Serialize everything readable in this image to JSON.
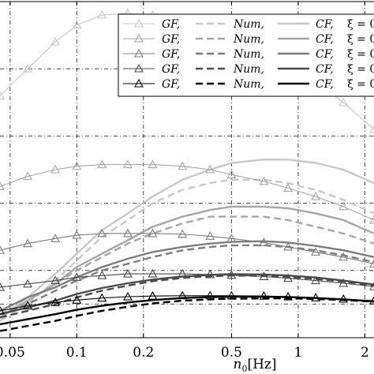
{
  "chart_data": {
    "type": "line",
    "title": "",
    "xlabel": "n_0[Hz]",
    "xlabel_parts": {
      "var": "n",
      "sub": "0",
      "unit": "[Hz]"
    },
    "ylabel": "",
    "xscale": "log",
    "xlim": [
      0.045,
      2.2
    ],
    "ylim": [
      0.0,
      1.0
    ],
    "xticks": [
      0.05,
      0.1,
      0.2,
      0.5,
      1,
      2
    ],
    "xtick_labels": [
      "0.05",
      "0.1",
      "0.2",
      "0.5",
      "1",
      "2"
    ],
    "grid": "dash-dot",
    "legend_position": "top-right",
    "legend_rows": [
      {
        "gf": "GF,",
        "num": "Num,",
        "cf": "CF,",
        "xi": "ξ = 0",
        "color": "#c8c8c8"
      },
      {
        "gf": "GF,",
        "num": "Num,",
        "cf": "CF,",
        "xi": "ξ = 0",
        "color": "#a6a6a6"
      },
      {
        "gf": "GF,",
        "num": "Num,",
        "cf": "CF,",
        "xi": "ξ = 0",
        "color": "#7d7d7d"
      },
      {
        "gf": "GF,",
        "num": "Num,",
        "cf": "CF,",
        "xi": "ξ = 0",
        "color": "#4a4a4a"
      },
      {
        "gf": "GF,",
        "num": "Num,",
        "cf": "CF,",
        "xi": "ξ = 0",
        "color": "#000000"
      }
    ],
    "x": [
      0.045,
      0.06,
      0.08,
      0.1,
      0.13,
      0.17,
      0.22,
      0.3,
      0.4,
      0.5,
      0.7,
      0.9,
      1.2,
      1.6,
      2.2
    ],
    "series": [
      {
        "color": "#c8c8c8",
        "gf": [
          0.72,
          0.8,
          0.88,
          0.93,
          0.96,
          0.965,
          0.96,
          0.95,
          0.93,
          0.91,
          0.87,
          0.82,
          0.76,
          0.7,
          0.62
        ],
        "num": [
          0.05,
          0.1,
          0.17,
          0.23,
          0.3,
          0.35,
          0.4,
          0.44,
          0.46,
          0.47,
          0.47,
          0.46,
          0.44,
          0.41,
          0.37
        ],
        "cf": [
          0.06,
          0.12,
          0.19,
          0.25,
          0.32,
          0.37,
          0.42,
          0.47,
          0.5,
          0.52,
          0.53,
          0.53,
          0.52,
          0.5,
          0.46
        ]
      },
      {
        "color": "#a6a6a6",
        "gf": [
          0.45,
          0.48,
          0.5,
          0.51,
          0.515,
          0.515,
          0.515,
          0.51,
          0.5,
          0.485,
          0.465,
          0.445,
          0.42,
          0.39,
          0.35
        ],
        "num": [
          0.06,
          0.11,
          0.16,
          0.2,
          0.24,
          0.28,
          0.31,
          0.34,
          0.36,
          0.36,
          0.36,
          0.35,
          0.33,
          0.31,
          0.28
        ],
        "cf": [
          0.06,
          0.11,
          0.16,
          0.21,
          0.25,
          0.29,
          0.33,
          0.36,
          0.38,
          0.39,
          0.39,
          0.385,
          0.37,
          0.35,
          0.31
        ]
      },
      {
        "color": "#7d7d7d",
        "gf": [
          0.26,
          0.28,
          0.295,
          0.305,
          0.31,
          0.31,
          0.31,
          0.308,
          0.302,
          0.295,
          0.283,
          0.27,
          0.255,
          0.24,
          0.22
        ],
        "num": [
          0.07,
          0.1,
          0.14,
          0.17,
          0.2,
          0.22,
          0.24,
          0.26,
          0.27,
          0.275,
          0.275,
          0.27,
          0.26,
          0.245,
          0.225
        ],
        "cf": [
          0.08,
          0.12,
          0.15,
          0.18,
          0.21,
          0.235,
          0.255,
          0.27,
          0.28,
          0.285,
          0.287,
          0.283,
          0.273,
          0.26,
          0.24
        ]
      },
      {
        "color": "#4a4a4a",
        "gf": [
          0.15,
          0.16,
          0.17,
          0.18,
          0.185,
          0.19,
          0.19,
          0.19,
          0.188,
          0.186,
          0.182,
          0.177,
          0.17,
          0.162,
          0.152
        ],
        "num": [
          0.06,
          0.08,
          0.1,
          0.12,
          0.14,
          0.155,
          0.168,
          0.178,
          0.183,
          0.185,
          0.184,
          0.181,
          0.175,
          0.167,
          0.155
        ],
        "cf": [
          0.07,
          0.09,
          0.11,
          0.13,
          0.148,
          0.162,
          0.173,
          0.182,
          0.187,
          0.189,
          0.188,
          0.185,
          0.179,
          0.17,
          0.158
        ]
      },
      {
        "color": "#000000",
        "gf": [
          0.08,
          0.095,
          0.105,
          0.112,
          0.118,
          0.122,
          0.124,
          0.125,
          0.125,
          0.125,
          0.124,
          0.122,
          0.119,
          0.115,
          0.11
        ],
        "num": [
          0.02,
          0.035,
          0.05,
          0.065,
          0.08,
          0.092,
          0.102,
          0.11,
          0.114,
          0.116,
          0.117,
          0.117,
          0.115,
          0.112,
          0.107
        ],
        "cf": [
          0.04,
          0.055,
          0.07,
          0.083,
          0.095,
          0.105,
          0.112,
          0.118,
          0.121,
          0.122,
          0.122,
          0.121,
          0.118,
          0.114,
          0.108
        ]
      }
    ]
  }
}
